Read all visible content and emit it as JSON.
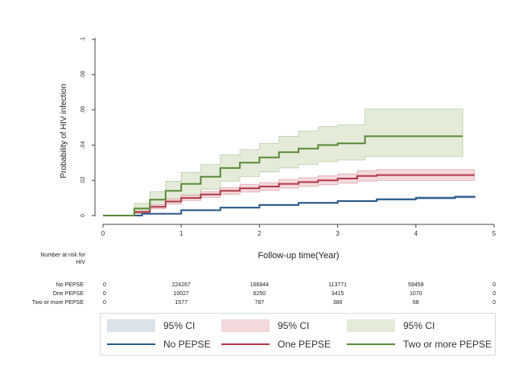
{
  "chart_data": {
    "type": "line",
    "title": "",
    "xlabel": "Follow-up time(Year)",
    "ylabel": "Probability of HIV infection",
    "xlim": [
      0,
      5
    ],
    "ylim": [
      0,
      0.1
    ],
    "xticks": [
      "0",
      "1",
      "2",
      "3",
      "4",
      "5"
    ],
    "yticks": [
      "0",
      ".02",
      ".04",
      ".06",
      ".08",
      ".1"
    ],
    "grid": false,
    "legend_position": "bottom",
    "series": [
      {
        "name": "No PEPSE",
        "color": "#2e5b8c",
        "ci_color": "#dde3eb",
        "x": [
          0,
          0.3,
          0.5,
          1,
          1.5,
          2,
          2.5,
          3,
          3.5,
          4,
          4.5,
          4.75
        ],
        "y": [
          0,
          0,
          0.001,
          0.003,
          0.0045,
          0.006,
          0.0072,
          0.0082,
          0.0092,
          0.01,
          0.0106,
          0.011
        ],
        "lower": [
          0,
          0,
          0.0008,
          0.0027,
          0.0042,
          0.0056,
          0.0068,
          0.0078,
          0.0087,
          0.0094,
          0.01,
          0.0103
        ],
        "upper": [
          0,
          0,
          0.0012,
          0.0033,
          0.0048,
          0.0064,
          0.0076,
          0.0086,
          0.0097,
          0.0106,
          0.0112,
          0.0117
        ]
      },
      {
        "name": "One PEPSE",
        "color": "#b03a48",
        "ci_color": "#f3d9dc",
        "x": [
          0,
          0.3,
          0.4,
          0.6,
          0.8,
          1,
          1.25,
          1.5,
          1.75,
          2,
          2.25,
          2.5,
          2.75,
          3,
          3.25,
          3.5,
          4,
          4.75
        ],
        "y": [
          0,
          0,
          0.002,
          0.005,
          0.008,
          0.01,
          0.012,
          0.014,
          0.0155,
          0.0165,
          0.018,
          0.019,
          0.02,
          0.021,
          0.0225,
          0.023,
          0.023,
          0.023
        ],
        "lower": [
          0,
          0,
          0.0013,
          0.0038,
          0.0065,
          0.0085,
          0.0103,
          0.012,
          0.0133,
          0.0143,
          0.0155,
          0.0165,
          0.0175,
          0.0183,
          0.0195,
          0.0199,
          0.0199,
          0.0199
        ],
        "upper": [
          0,
          0,
          0.0027,
          0.0062,
          0.0095,
          0.0115,
          0.0137,
          0.016,
          0.0177,
          0.0187,
          0.0205,
          0.0215,
          0.0225,
          0.0237,
          0.0255,
          0.0261,
          0.0261,
          0.0261
        ]
      },
      {
        "name": "Two or more PEPSE",
        "color": "#5b8a3a",
        "ci_color": "#e4ebd9",
        "x": [
          0,
          0.3,
          0.4,
          0.6,
          0.8,
          1,
          1.25,
          1.5,
          1.75,
          2,
          2.25,
          2.5,
          2.75,
          3,
          3.25,
          3.35,
          4,
          4.6
        ],
        "y": [
          0,
          0,
          0.004,
          0.009,
          0.014,
          0.018,
          0.022,
          0.027,
          0.03,
          0.033,
          0.036,
          0.038,
          0.04,
          0.041,
          0.041,
          0.045,
          0.045,
          0.045
        ],
        "lower": [
          0,
          0,
          0.001,
          0.0045,
          0.0085,
          0.0115,
          0.015,
          0.0195,
          0.0222,
          0.0248,
          0.027,
          0.029,
          0.0306,
          0.0315,
          0.0315,
          0.0335,
          0.0335,
          0.0335
        ],
        "upper": [
          0,
          0,
          0.007,
          0.0135,
          0.0195,
          0.0245,
          0.029,
          0.0345,
          0.0375,
          0.041,
          0.045,
          0.048,
          0.0505,
          0.0515,
          0.0515,
          0.0605,
          0.0605,
          0.0605
        ]
      }
    ],
    "risk_table": {
      "title": "Number at risk for HIV",
      "rows": [
        {
          "label": "No PEPSE",
          "values": [
            "0",
            "224267",
            "166844",
            "113771",
            "59459",
            "0"
          ]
        },
        {
          "label": "One PEPSE",
          "values": [
            "0",
            "10027",
            "6250",
            "3415",
            "1070",
            "0"
          ]
        },
        {
          "label": "Two or more PEPSE",
          "values": [
            "0",
            "1577",
            "787",
            "386",
            "68",
            "0"
          ]
        }
      ]
    },
    "legend": {
      "ci_label": "95% CI"
    }
  }
}
